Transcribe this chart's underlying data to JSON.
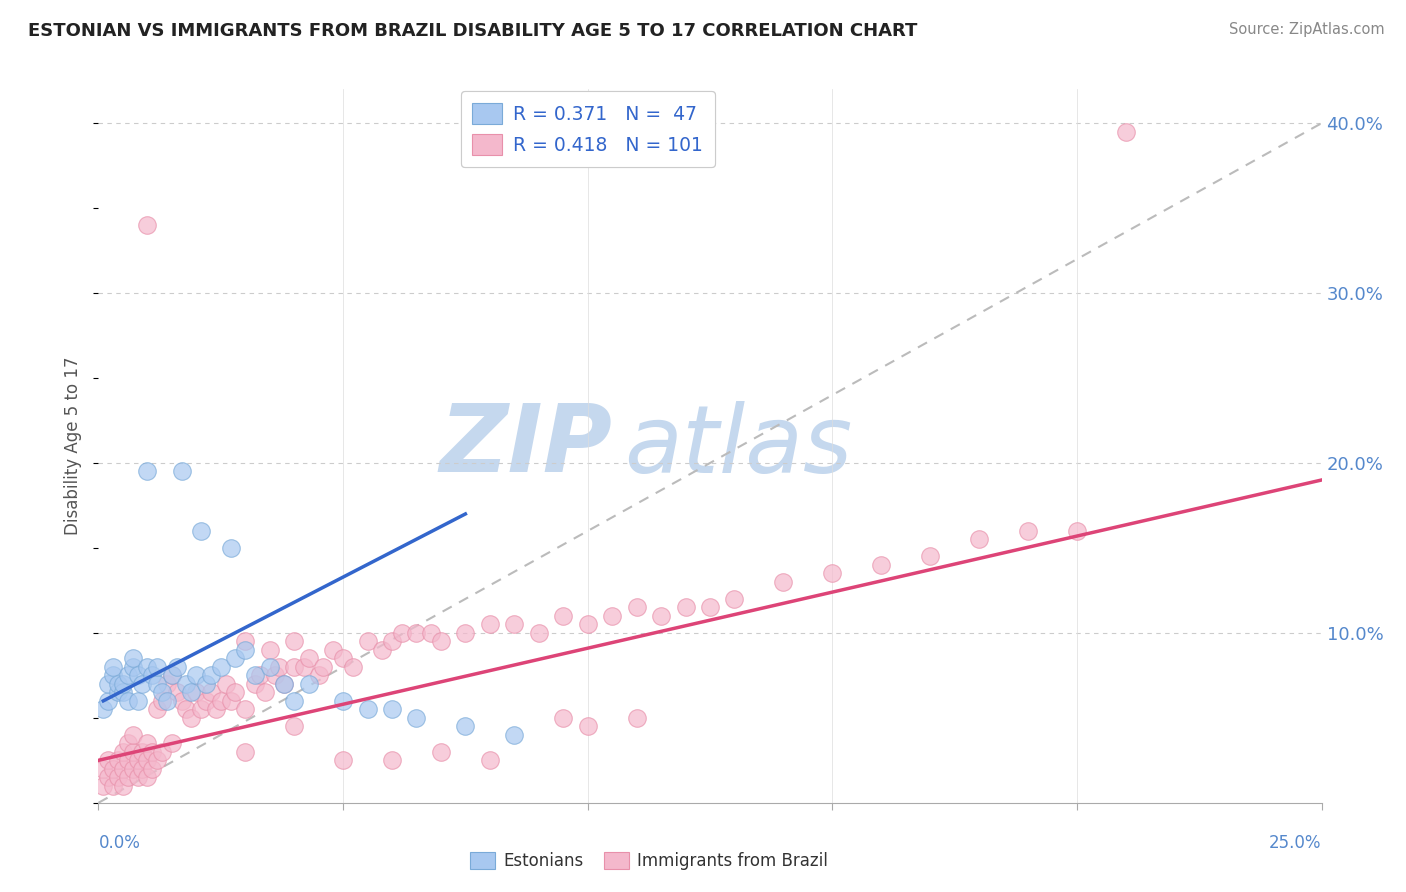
{
  "title": "ESTONIAN VS IMMIGRANTS FROM BRAZIL DISABILITY AGE 5 TO 17 CORRELATION CHART",
  "source": "Source: ZipAtlas.com",
  "ylabel": "Disability Age 5 to 17",
  "xmin": 0.0,
  "xmax": 0.25,
  "ymin": 0.0,
  "ymax": 0.42,
  "legend_r1": "R = 0.371",
  "legend_n1": "N =  47",
  "legend_r2": "R = 0.418",
  "legend_n2": "N = 101",
  "color_estonian_fill": "#a8c8f0",
  "color_estonian_edge": "#7aaad8",
  "color_brazil_fill": "#f4b8cc",
  "color_brazil_edge": "#e890aa",
  "color_estonian_line": "#3366cc",
  "color_brazil_line": "#dd4477",
  "color_ref_line": "#bbbbbb",
  "watermark_zip": "ZIP",
  "watermark_atlas": "atlas",
  "watermark_color_zip": "#c5d8ee",
  "watermark_color_atlas": "#c5d8ee",
  "estonian_x": [
    0.001,
    0.002,
    0.002,
    0.003,
    0.003,
    0.004,
    0.004,
    0.005,
    0.005,
    0.006,
    0.006,
    0.007,
    0.007,
    0.008,
    0.008,
    0.009,
    0.01,
    0.01,
    0.011,
    0.012,
    0.012,
    0.013,
    0.014,
    0.015,
    0.016,
    0.017,
    0.018,
    0.019,
    0.02,
    0.021,
    0.022,
    0.023,
    0.025,
    0.027,
    0.028,
    0.03,
    0.032,
    0.035,
    0.038,
    0.04,
    0.043,
    0.05,
    0.055,
    0.06,
    0.065,
    0.075,
    0.085
  ],
  "estonian_y": [
    0.055,
    0.06,
    0.07,
    0.075,
    0.08,
    0.065,
    0.07,
    0.065,
    0.07,
    0.06,
    0.075,
    0.08,
    0.085,
    0.06,
    0.075,
    0.07,
    0.08,
    0.195,
    0.075,
    0.07,
    0.08,
    0.065,
    0.06,
    0.075,
    0.08,
    0.195,
    0.07,
    0.065,
    0.075,
    0.16,
    0.07,
    0.075,
    0.08,
    0.15,
    0.085,
    0.09,
    0.075,
    0.08,
    0.07,
    0.06,
    0.07,
    0.06,
    0.055,
    0.055,
    0.05,
    0.045,
    0.04
  ],
  "brazil_x": [
    0.001,
    0.001,
    0.002,
    0.002,
    0.003,
    0.003,
    0.004,
    0.004,
    0.005,
    0.005,
    0.005,
    0.006,
    0.006,
    0.006,
    0.007,
    0.007,
    0.007,
    0.008,
    0.008,
    0.009,
    0.009,
    0.01,
    0.01,
    0.01,
    0.011,
    0.011,
    0.012,
    0.012,
    0.013,
    0.013,
    0.014,
    0.015,
    0.015,
    0.016,
    0.017,
    0.018,
    0.019,
    0.02,
    0.021,
    0.022,
    0.023,
    0.024,
    0.025,
    0.026,
    0.027,
    0.028,
    0.03,
    0.03,
    0.032,
    0.033,
    0.034,
    0.035,
    0.036,
    0.037,
    0.038,
    0.04,
    0.04,
    0.042,
    0.043,
    0.045,
    0.046,
    0.048,
    0.05,
    0.052,
    0.055,
    0.058,
    0.06,
    0.062,
    0.065,
    0.068,
    0.07,
    0.075,
    0.08,
    0.085,
    0.09,
    0.095,
    0.1,
    0.105,
    0.11,
    0.115,
    0.12,
    0.125,
    0.13,
    0.14,
    0.15,
    0.16,
    0.17,
    0.18,
    0.19,
    0.2,
    0.01,
    0.21,
    0.03,
    0.04,
    0.05,
    0.06,
    0.07,
    0.08,
    0.095,
    0.1,
    0.11
  ],
  "brazil_y": [
    0.01,
    0.02,
    0.015,
    0.025,
    0.01,
    0.02,
    0.015,
    0.025,
    0.01,
    0.02,
    0.03,
    0.015,
    0.025,
    0.035,
    0.02,
    0.03,
    0.04,
    0.015,
    0.025,
    0.02,
    0.03,
    0.015,
    0.025,
    0.035,
    0.02,
    0.03,
    0.025,
    0.055,
    0.03,
    0.06,
    0.07,
    0.035,
    0.075,
    0.065,
    0.06,
    0.055,
    0.05,
    0.065,
    0.055,
    0.06,
    0.065,
    0.055,
    0.06,
    0.07,
    0.06,
    0.065,
    0.055,
    0.095,
    0.07,
    0.075,
    0.065,
    0.09,
    0.075,
    0.08,
    0.07,
    0.08,
    0.095,
    0.08,
    0.085,
    0.075,
    0.08,
    0.09,
    0.085,
    0.08,
    0.095,
    0.09,
    0.095,
    0.1,
    0.1,
    0.1,
    0.095,
    0.1,
    0.105,
    0.105,
    0.1,
    0.11,
    0.105,
    0.11,
    0.115,
    0.11,
    0.115,
    0.115,
    0.12,
    0.13,
    0.135,
    0.14,
    0.145,
    0.155,
    0.16,
    0.16,
    0.34,
    0.395,
    0.03,
    0.045,
    0.025,
    0.025,
    0.03,
    0.025,
    0.05,
    0.045,
    0.05
  ],
  "est_line_x": [
    0.001,
    0.075
  ],
  "est_line_y": [
    0.06,
    0.17
  ],
  "bra_line_x": [
    0.0,
    0.25
  ],
  "bra_line_y": [
    0.025,
    0.19
  ],
  "ref_line_x": [
    0.0,
    0.25
  ],
  "ref_line_y": [
    0.0,
    0.4
  ]
}
